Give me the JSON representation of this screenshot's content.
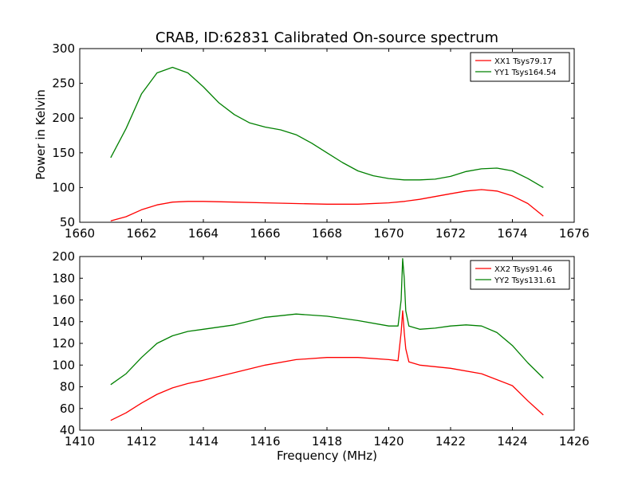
{
  "chart_data": [
    {
      "type": "line",
      "title": "CRAB, ID:62831 Calibrated On-source spectrum",
      "xlabel": "",
      "ylabel": "Power in Kelvin",
      "xlim": [
        1660,
        1676
      ],
      "ylim": [
        50,
        300
      ],
      "xticks": [
        1660,
        1662,
        1664,
        1666,
        1668,
        1670,
        1672,
        1674,
        1676
      ],
      "yticks": [
        50,
        100,
        150,
        200,
        250,
        300
      ],
      "legend_position": "top-right",
      "series": [
        {
          "name": "XX1 Tsys79.17",
          "color": "#ff0000",
          "points": [
            [
              1661.0,
              52
            ],
            [
              1661.5,
              58
            ],
            [
              1662.0,
              68
            ],
            [
              1662.5,
              75
            ],
            [
              1663.0,
              79
            ],
            [
              1663.5,
              80
            ],
            [
              1664.0,
              80
            ],
            [
              1665.0,
              79
            ],
            [
              1666.0,
              78
            ],
            [
              1667.0,
              77
            ],
            [
              1668.0,
              76
            ],
            [
              1669.0,
              76
            ],
            [
              1670.0,
              78
            ],
            [
              1670.5,
              80
            ],
            [
              1671.0,
              83
            ],
            [
              1671.5,
              87
            ],
            [
              1672.0,
              91
            ],
            [
              1672.5,
              95
            ],
            [
              1673.0,
              97
            ],
            [
              1673.5,
              95
            ],
            [
              1674.0,
              88
            ],
            [
              1674.5,
              77
            ],
            [
              1675.0,
              59
            ]
          ]
        },
        {
          "name": "YY1 Tsys164.54",
          "color": "#008000",
          "points": [
            [
              1661.0,
              143
            ],
            [
              1661.5,
              185
            ],
            [
              1662.0,
              235
            ],
            [
              1662.5,
              265
            ],
            [
              1663.0,
              273
            ],
            [
              1663.5,
              265
            ],
            [
              1664.0,
              245
            ],
            [
              1664.5,
              222
            ],
            [
              1665.0,
              205
            ],
            [
              1665.5,
              193
            ],
            [
              1666.0,
              187
            ],
            [
              1666.5,
              183
            ],
            [
              1667.0,
              176
            ],
            [
              1667.5,
              164
            ],
            [
              1668.0,
              150
            ],
            [
              1668.5,
              136
            ],
            [
              1669.0,
              124
            ],
            [
              1669.5,
              117
            ],
            [
              1670.0,
              113
            ],
            [
              1670.5,
              111
            ],
            [
              1671.0,
              111
            ],
            [
              1671.5,
              112
            ],
            [
              1672.0,
              116
            ],
            [
              1672.5,
              123
            ],
            [
              1673.0,
              127
            ],
            [
              1673.5,
              128
            ],
            [
              1674.0,
              124
            ],
            [
              1674.5,
              113
            ],
            [
              1675.0,
              100
            ]
          ]
        }
      ]
    },
    {
      "type": "line",
      "title": "",
      "xlabel": "Frequency (MHz)",
      "ylabel": "",
      "xlim": [
        1410,
        1426
      ],
      "ylim": [
        40,
        200
      ],
      "xticks": [
        1410,
        1412,
        1414,
        1416,
        1418,
        1420,
        1422,
        1424,
        1426
      ],
      "yticks": [
        40,
        60,
        80,
        100,
        120,
        140,
        160,
        180,
        200
      ],
      "legend_position": "top-right",
      "series": [
        {
          "name": "XX2 Tsys91.46",
          "color": "#ff0000",
          "points": [
            [
              1411.0,
              49
            ],
            [
              1411.5,
              56
            ],
            [
              1412.0,
              65
            ],
            [
              1412.5,
              73
            ],
            [
              1413.0,
              79
            ],
            [
              1413.5,
              83
            ],
            [
              1414.0,
              86
            ],
            [
              1415.0,
              93
            ],
            [
              1416.0,
              100
            ],
            [
              1417.0,
              105
            ],
            [
              1418.0,
              107
            ],
            [
              1419.0,
              107
            ],
            [
              1420.0,
              105
            ],
            [
              1420.3,
              104
            ],
            [
              1420.4,
              130
            ],
            [
              1420.45,
              150
            ],
            [
              1420.5,
              130
            ],
            [
              1420.55,
              115
            ],
            [
              1420.65,
              103
            ],
            [
              1421.0,
              100
            ],
            [
              1422.0,
              97
            ],
            [
              1423.0,
              92
            ],
            [
              1424.0,
              81
            ],
            [
              1424.5,
              67
            ],
            [
              1425.0,
              54
            ]
          ]
        },
        {
          "name": "YY2 Tsys131.61",
          "color": "#008000",
          "points": [
            [
              1411.0,
              82
            ],
            [
              1411.5,
              92
            ],
            [
              1412.0,
              107
            ],
            [
              1412.5,
              120
            ],
            [
              1413.0,
              127
            ],
            [
              1413.5,
              131
            ],
            [
              1414.0,
              133
            ],
            [
              1415.0,
              137
            ],
            [
              1416.0,
              144
            ],
            [
              1417.0,
              147
            ],
            [
              1418.0,
              145
            ],
            [
              1419.0,
              141
            ],
            [
              1420.0,
              136
            ],
            [
              1420.3,
              136
            ],
            [
              1420.4,
              160
            ],
            [
              1420.45,
              198
            ],
            [
              1420.5,
              180
            ],
            [
              1420.55,
              150
            ],
            [
              1420.65,
              136
            ],
            [
              1421.0,
              133
            ],
            [
              1421.5,
              134
            ],
            [
              1422.0,
              136
            ],
            [
              1422.5,
              137
            ],
            [
              1423.0,
              136
            ],
            [
              1423.5,
              130
            ],
            [
              1424.0,
              118
            ],
            [
              1424.5,
              102
            ],
            [
              1425.0,
              88
            ]
          ]
        }
      ]
    }
  ]
}
